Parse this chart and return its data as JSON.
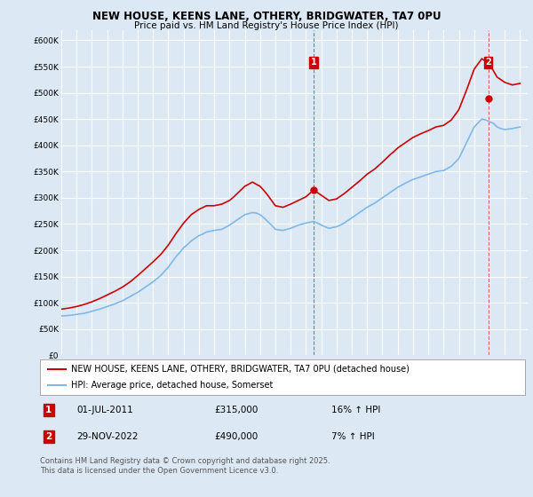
{
  "title": "NEW HOUSE, KEENS LANE, OTHERY, BRIDGWATER, TA7 0PU",
  "subtitle": "Price paid vs. HM Land Registry's House Price Index (HPI)",
  "legend_label_red": "NEW HOUSE, KEENS LANE, OTHERY, BRIDGWATER, TA7 0PU (detached house)",
  "legend_label_blue": "HPI: Average price, detached house, Somerset",
  "footnote": "Contains HM Land Registry data © Crown copyright and database right 2025.\nThis data is licensed under the Open Government Licence v3.0.",
  "sale1_label": "1",
  "sale1_date": "01-JUL-2011",
  "sale1_price": "£315,000",
  "sale1_hpi": "16% ↑ HPI",
  "sale2_label": "2",
  "sale2_date": "29-NOV-2022",
  "sale2_price": "£490,000",
  "sale2_hpi": "7% ↑ HPI",
  "ylim": [
    0,
    620000
  ],
  "yticks": [
    0,
    50000,
    100000,
    150000,
    200000,
    250000,
    300000,
    350000,
    400000,
    450000,
    500000,
    550000,
    600000
  ],
  "ytick_labels": [
    "£0",
    "£50K",
    "£100K",
    "£150K",
    "£200K",
    "£250K",
    "£300K",
    "£350K",
    "£400K",
    "£450K",
    "£500K",
    "£550K",
    "£600K"
  ],
  "background_color": "#dce9f5",
  "plot_bg_color": "#dce9f5",
  "grid_color": "#ffffff",
  "red_color": "#cc0000",
  "blue_color": "#7fb8e8",
  "sale_x1": 2011.5,
  "sale_y1": 315000,
  "sale_x2": 2022.92,
  "sale_y2": 490000,
  "hpi_x": [
    1995,
    1995.25,
    1995.5,
    1995.75,
    1996,
    1996.25,
    1996.5,
    1996.75,
    1997,
    1997.25,
    1997.5,
    1997.75,
    1998,
    1998.25,
    1998.5,
    1998.75,
    1999,
    1999.25,
    1999.5,
    1999.75,
    2000,
    2000.25,
    2000.5,
    2000.75,
    2001,
    2001.25,
    2001.5,
    2001.75,
    2002,
    2002.25,
    2002.5,
    2002.75,
    2003,
    2003.25,
    2003.5,
    2003.75,
    2004,
    2004.25,
    2004.5,
    2004.75,
    2005,
    2005.25,
    2005.5,
    2005.75,
    2006,
    2006.25,
    2006.5,
    2006.75,
    2007,
    2007.25,
    2007.5,
    2007.75,
    2008,
    2008.25,
    2008.5,
    2008.75,
    2009,
    2009.25,
    2009.5,
    2009.75,
    2010,
    2010.25,
    2010.5,
    2010.75,
    2011,
    2011.25,
    2011.5,
    2011.75,
    2012,
    2012.25,
    2012.5,
    2012.75,
    2013,
    2013.25,
    2013.5,
    2013.75,
    2014,
    2014.25,
    2014.5,
    2014.75,
    2015,
    2015.25,
    2015.5,
    2015.75,
    2016,
    2016.25,
    2016.5,
    2016.75,
    2017,
    2017.25,
    2017.5,
    2017.75,
    2018,
    2018.25,
    2018.5,
    2018.75,
    2019,
    2019.25,
    2019.5,
    2019.75,
    2020,
    2020.25,
    2020.5,
    2020.75,
    2021,
    2021.25,
    2021.5,
    2021.75,
    2022,
    2022.25,
    2022.5,
    2022.75,
    2023,
    2023.25,
    2023.5,
    2023.75,
    2024,
    2024.25,
    2024.5,
    2024.75,
    2025
  ],
  "hpi_y": [
    75000,
    75500,
    76000,
    77000,
    78000,
    79000,
    80000,
    82000,
    84000,
    86000,
    88000,
    90500,
    93000,
    95500,
    98000,
    101000,
    104000,
    108000,
    112000,
    116000,
    120000,
    125000,
    130000,
    135000,
    140000,
    146000,
    152000,
    160000,
    168000,
    178000,
    188000,
    196000,
    205000,
    211000,
    218000,
    223000,
    228000,
    231000,
    235000,
    236500,
    238000,
    239000,
    240000,
    244000,
    248000,
    253000,
    258000,
    263000,
    268000,
    270000,
    272000,
    271000,
    268000,
    262000,
    255000,
    248000,
    240000,
    239000,
    238000,
    240000,
    242000,
    245000,
    248000,
    250000,
    252000,
    253500,
    255000,
    252000,
    248000,
    245000,
    242000,
    243500,
    245000,
    248000,
    252000,
    257000,
    262000,
    267000,
    272000,
    277000,
    282000,
    286000,
    290000,
    295000,
    300000,
    305000,
    310000,
    315000,
    320000,
    324000,
    328000,
    331500,
    335000,
    337500,
    340000,
    342500,
    345000,
    347500,
    350000,
    351000,
    352000,
    356000,
    360000,
    367500,
    375000,
    390000,
    405000,
    420000,
    435000,
    442500,
    450000,
    448500,
    445000,
    442000,
    435000,
    432000,
    430000,
    431000,
    432000,
    433500,
    435000
  ],
  "red_x": [
    1995,
    1995.25,
    1995.5,
    1995.75,
    1996,
    1996.25,
    1996.5,
    1996.75,
    1997,
    1997.25,
    1997.5,
    1997.75,
    1998,
    1998.25,
    1998.5,
    1998.75,
    1999,
    1999.25,
    1999.5,
    1999.75,
    2000,
    2000.25,
    2000.5,
    2000.75,
    2001,
    2001.25,
    2001.5,
    2001.75,
    2002,
    2002.25,
    2002.5,
    2002.75,
    2003,
    2003.25,
    2003.5,
    2003.75,
    2004,
    2004.25,
    2004.5,
    2004.75,
    2005,
    2005.25,
    2005.5,
    2005.75,
    2006,
    2006.25,
    2006.5,
    2006.75,
    2007,
    2007.25,
    2007.5,
    2007.75,
    2008,
    2008.25,
    2008.5,
    2008.75,
    2009,
    2009.25,
    2009.5,
    2009.75,
    2010,
    2010.25,
    2010.5,
    2010.75,
    2011,
    2011.25,
    2011.5,
    2011.75,
    2012,
    2012.25,
    2012.5,
    2012.75,
    2013,
    2013.25,
    2013.5,
    2013.75,
    2014,
    2014.25,
    2014.5,
    2014.75,
    2015,
    2015.25,
    2015.5,
    2015.75,
    2016,
    2016.25,
    2016.5,
    2016.75,
    2017,
    2017.25,
    2017.5,
    2017.75,
    2018,
    2018.25,
    2018.5,
    2018.75,
    2019,
    2019.25,
    2019.5,
    2019.75,
    2020,
    2020.25,
    2020.5,
    2020.75,
    2021,
    2021.25,
    2021.5,
    2021.75,
    2022,
    2022.25,
    2022.5,
    2022.75,
    2023,
    2023.25,
    2023.5,
    2023.75,
    2024,
    2024.25,
    2024.5,
    2024.75,
    2025
  ],
  "red_y": [
    88000,
    89000,
    90000,
    91500,
    93000,
    95000,
    97000,
    99500,
    102000,
    105000,
    108000,
    111500,
    115000,
    118500,
    122000,
    126000,
    130000,
    135000,
    140000,
    146000,
    152000,
    158500,
    165000,
    171500,
    178000,
    185000,
    192000,
    201000,
    210000,
    221000,
    232000,
    242000,
    252000,
    260000,
    268000,
    273000,
    278000,
    281500,
    285000,
    285000,
    285000,
    286500,
    288000,
    291500,
    295000,
    301000,
    308000,
    315000,
    322000,
    326000,
    330000,
    326000,
    322000,
    314000,
    305000,
    295000,
    285000,
    283500,
    282000,
    285000,
    288000,
    291500,
    295000,
    298500,
    302000,
    308500,
    315000,
    310000,
    305000,
    300000,
    295000,
    296500,
    298000,
    303000,
    308000,
    314000,
    320000,
    326000,
    332000,
    338500,
    345000,
    350000,
    355000,
    361500,
    368000,
    375000,
    382000,
    388000,
    395000,
    400000,
    405000,
    410000,
    415000,
    418500,
    422000,
    425000,
    428000,
    431500,
    435000,
    436500,
    438000,
    443000,
    448000,
    458000,
    468000,
    486500,
    505000,
    525000,
    545000,
    555000,
    565000,
    560000,
    555000,
    542500,
    530000,
    525000,
    520000,
    517500,
    515000,
    516500,
    518000
  ],
  "xlim": [
    1995,
    2025.5
  ],
  "xticks": [
    1995,
    1996,
    1997,
    1998,
    1999,
    2000,
    2001,
    2002,
    2003,
    2004,
    2005,
    2006,
    2007,
    2008,
    2009,
    2010,
    2011,
    2012,
    2013,
    2014,
    2015,
    2016,
    2017,
    2018,
    2019,
    2020,
    2021,
    2022,
    2023,
    2024,
    2025
  ],
  "title_fontsize": 8.5,
  "subtitle_fontsize": 7.5,
  "tick_fontsize": 6.5,
  "legend_fontsize": 7.0,
  "table_fontsize": 7.5,
  "footnote_fontsize": 6.0
}
